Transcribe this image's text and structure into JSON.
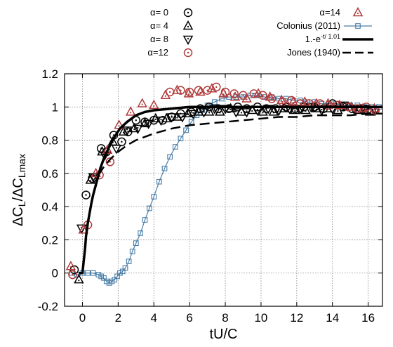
{
  "chart_data": {
    "type": "scatter",
    "xlabel": "tU/C",
    "ylabel": {
      "base1": "ΔC",
      "sub1": "L",
      "mid": "/ΔC",
      "sub2": "Lmax"
    },
    "xlim": [
      -1,
      16.8
    ],
    "ylim": [
      -0.2,
      1.2
    ],
    "xticks": [
      "0",
      "2",
      "4",
      "6",
      "8",
      "10",
      "12",
      "14",
      "16"
    ],
    "xtick_values": [
      0,
      2,
      4,
      6,
      8,
      10,
      12,
      14,
      16
    ],
    "yticks": [
      "-0.2",
      "0",
      "0.2",
      "0.4",
      "0.6",
      "0.8",
      "1",
      "1.2"
    ],
    "ytick_values": [
      -0.2,
      0,
      0.2,
      0.4,
      0.6,
      0.8,
      1,
      1.2
    ],
    "grid": true,
    "legend_position": "top",
    "series": [
      {
        "name": "α= 0",
        "marker": "circle-dot",
        "color": "#000000",
        "x": [
          -0.45,
          0.2,
          0.55,
          1.05,
          1.35,
          1.75,
          2.2,
          2.55,
          3.0,
          3.5,
          4.0,
          4.5,
          5.0,
          5.5,
          6.1,
          6.6,
          7.1,
          7.6,
          8.2,
          8.7,
          9.2,
          9.8,
          10.3,
          10.8,
          11.4,
          11.9,
          12.4,
          13.0,
          13.5,
          14.0,
          14.6,
          15.1,
          15.6,
          16.2
        ],
        "y": [
          0.02,
          0.47,
          0.57,
          0.75,
          0.73,
          0.83,
          0.79,
          0.85,
          0.92,
          0.91,
          0.92,
          0.92,
          0.94,
          0.96,
          0.97,
          0.99,
          1.0,
          0.99,
          0.99,
          1.0,
          0.99,
          1.0,
          0.99,
          0.99,
          1.0,
          0.99,
          1.0,
          1.0,
          0.99,
          1.02,
          1.0,
          0.99,
          0.99,
          0.98
        ]
      },
      {
        "name": "α= 4",
        "marker": "triangle-up-dot",
        "color": "#000000",
        "x": [
          -0.2,
          0.45,
          1.1,
          1.7,
          2.3,
          2.9,
          3.5,
          4.1,
          4.7,
          5.3,
          5.9,
          6.5,
          7.1,
          7.7,
          8.3,
          8.9,
          9.5,
          10.1,
          10.7,
          11.3,
          11.9,
          12.5,
          13.1,
          13.7,
          14.3,
          14.9,
          15.5,
          16.1
        ],
        "y": [
          -0.04,
          0.56,
          0.73,
          0.79,
          0.85,
          0.87,
          0.9,
          0.93,
          0.93,
          0.94,
          0.96,
          0.97,
          0.97,
          0.97,
          0.99,
          0.97,
          0.98,
          0.97,
          0.97,
          0.99,
          0.98,
          0.98,
          0.99,
          0.99,
          0.98,
          1.0,
          0.98,
          0.97
        ]
      },
      {
        "name": "α= 8",
        "marker": "triangle-down-dot",
        "color": "#000000",
        "x": [
          -0.05,
          0.6,
          1.25,
          1.9,
          2.5,
          3.1,
          3.7,
          4.4,
          5.0,
          5.6,
          6.2,
          6.8,
          7.4,
          8.0,
          8.6,
          9.2,
          9.8,
          10.4,
          11.0,
          11.6,
          12.2,
          12.8,
          13.4,
          14.0,
          14.6,
          15.2,
          15.8,
          16.4
        ],
        "y": [
          0.27,
          0.58,
          0.71,
          0.75,
          0.86,
          0.87,
          0.9,
          0.92,
          0.94,
          0.94,
          0.96,
          0.97,
          0.99,
          0.99,
          0.97,
          0.97,
          0.98,
          0.99,
          0.98,
          0.99,
          0.99,
          1.0,
          0.98,
          0.99,
          1.01,
          0.99,
          0.99,
          0.98
        ]
      },
      {
        "name": "α=12",
        "marker": "circle-dot",
        "color": "#b03a3a",
        "x": [
          -0.55,
          0.3,
          0.95,
          1.55,
          4.9,
          5.5,
          6.0,
          6.5,
          7.0,
          7.5,
          8.0,
          8.5,
          9.0,
          9.6,
          10.1,
          10.6,
          11.2,
          11.7,
          12.2,
          12.7,
          13.3,
          13.8,
          14.3,
          14.9,
          15.4,
          15.9,
          16.4
        ],
        "y": [
          -0.01,
          0.29,
          0.59,
          0.67,
          1.09,
          1.1,
          1.09,
          1.1,
          1.1,
          1.12,
          1.09,
          1.08,
          1.07,
          1.08,
          1.07,
          1.05,
          1.03,
          1.04,
          1.02,
          1.02,
          1.02,
          1.01,
          1.01,
          1.0,
          0.99,
          1.0,
          0.98
        ]
      },
      {
        "name": "α=14",
        "marker": "triangle-up-dot",
        "color": "#b03a3a",
        "x": [
          -0.65,
          0.05,
          0.75,
          1.4,
          2.05,
          2.7,
          3.35,
          4.0,
          4.65,
          5.3,
          5.95,
          6.6,
          7.25,
          7.9,
          8.55,
          9.2,
          9.85,
          10.5,
          11.15,
          11.8,
          12.45,
          13.1,
          13.75,
          14.4,
          15.05,
          15.7,
          16.35
        ],
        "y": [
          0.04,
          0.26,
          0.6,
          0.74,
          0.89,
          0.97,
          1.02,
          1.01,
          1.07,
          1.1,
          1.08,
          1.09,
          1.11,
          1.08,
          1.06,
          1.05,
          1.08,
          1.06,
          1.04,
          1.03,
          1.03,
          1.02,
          1.02,
          1.01,
          1.0,
          0.99,
          0.99
        ]
      },
      {
        "name": "Colonius (2011)",
        "marker": "square-line",
        "color": "#4a7ea8",
        "x": [
          -0.6,
          -0.3,
          0.0,
          0.3,
          0.6,
          0.9,
          1.05,
          1.2,
          1.35,
          1.5,
          1.65,
          1.8,
          1.95,
          2.1,
          2.25,
          2.4,
          2.6,
          2.8,
          3.0,
          3.25,
          3.5,
          3.75,
          4.0,
          4.3,
          4.6,
          4.9,
          5.2,
          5.5,
          5.8,
          6.1,
          6.4,
          6.7,
          7.0,
          7.4,
          7.8,
          8.2,
          8.6,
          9.0,
          9.4,
          9.8,
          10.2,
          10.6,
          11.0,
          11.4,
          11.8,
          12.2,
          12.6,
          13.0,
          13.4,
          13.8,
          14.2,
          14.6,
          15.0,
          15.4,
          15.8,
          16.2,
          16.6
        ],
        "y": [
          0.0,
          -0.01,
          0.0,
          0.0,
          0.0,
          -0.01,
          -0.02,
          -0.03,
          -0.05,
          -0.06,
          -0.05,
          -0.04,
          -0.02,
          0.0,
          0.01,
          0.03,
          0.07,
          0.13,
          0.18,
          0.24,
          0.32,
          0.39,
          0.46,
          0.55,
          0.63,
          0.7,
          0.76,
          0.81,
          0.86,
          0.91,
          0.95,
          0.98,
          1.01,
          1.03,
          1.05,
          1.06,
          1.06,
          1.06,
          1.07,
          1.07,
          1.06,
          1.06,
          1.05,
          1.05,
          1.04,
          1.04,
          1.03,
          1.03,
          1.02,
          1.02,
          1.02,
          1.01,
          1.01,
          1.01,
          1.0,
          1.0,
          1.0
        ]
      },
      {
        "name": "1.-e",
        "name_sup": "-t/ 1.01",
        "marker": "none",
        "color": "#000000",
        "line": "solid",
        "x": [
          -0.2,
          -0.1,
          0.0,
          0.05,
          0.1,
          0.15,
          0.2,
          0.3,
          0.4,
          0.5,
          0.6,
          0.8,
          1.0,
          1.2,
          1.5,
          1.8,
          2.1,
          2.5,
          3.0,
          3.5,
          4.0,
          5.0,
          6.0,
          7.0,
          8.0,
          10.0,
          12.0,
          14.0,
          16.8
        ],
        "y": [
          0.0,
          0.0,
          0.0,
          0.05,
          0.1,
          0.15,
          0.22,
          0.3,
          0.36,
          0.42,
          0.47,
          0.55,
          0.63,
          0.69,
          0.76,
          0.82,
          0.87,
          0.91,
          0.95,
          0.97,
          0.98,
          0.99,
          1.0,
          1.0,
          1.0,
          1.0,
          1.0,
          1.0,
          1.0
        ]
      },
      {
        "name": "Jones (1940)",
        "marker": "none",
        "color": "#000000",
        "line": "dashed",
        "x": [
          0.9,
          1.2,
          1.6,
          2.0,
          2.5,
          3.0,
          3.5,
          4.0,
          5.0,
          6.0,
          7.0,
          8.0,
          9.0,
          10.0,
          11.0,
          12.0,
          13.0,
          14.0,
          15.0,
          16.0,
          16.8
        ],
        "y": [
          0.59,
          0.64,
          0.69,
          0.73,
          0.77,
          0.8,
          0.82,
          0.84,
          0.87,
          0.89,
          0.9,
          0.91,
          0.92,
          0.93,
          0.94,
          0.94,
          0.95,
          0.95,
          0.95,
          0.96,
          0.96
        ]
      }
    ]
  }
}
